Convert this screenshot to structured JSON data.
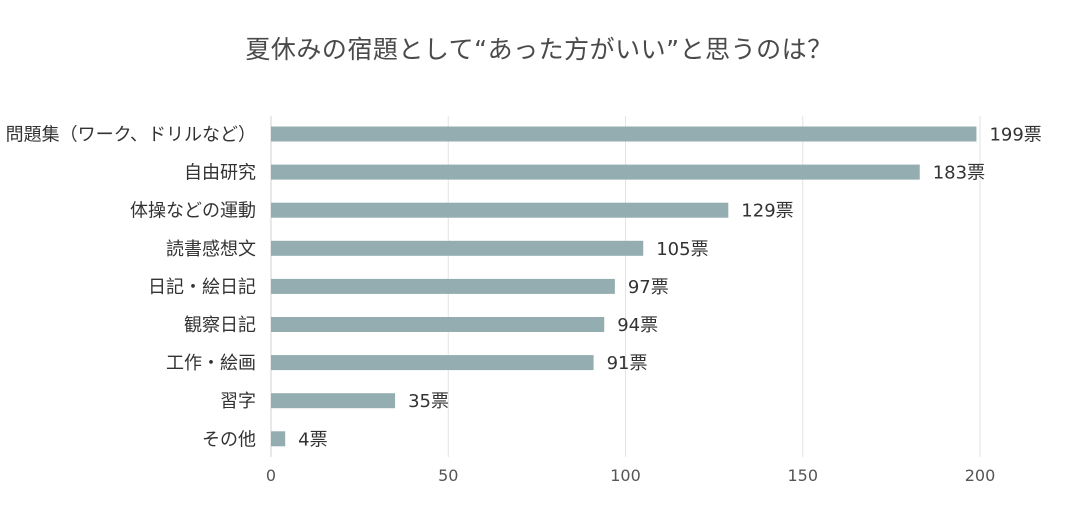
{
  "chart_data": {
    "type": "bar",
    "orientation": "horizontal",
    "title": "夏休みの宿題として“あった方がいい”と思うのは？",
    "categories": [
      "問題集（ワーク、ドリルなど）",
      "自由研究",
      "体操などの運動",
      "読書感想文",
      "日記・絵日記",
      "観察日記",
      "工作・絵画",
      "習字",
      "その他"
    ],
    "values": [
      199,
      183,
      129,
      105,
      97,
      94,
      91,
      35,
      4
    ],
    "value_labels": [
      "199票",
      "183票",
      "129票",
      "105票",
      "97票",
      "94票",
      "91票",
      "35票",
      "4票"
    ],
    "xlim": [
      0,
      200
    ],
    "xticks": [
      "0",
      "50",
      "100",
      "150",
      "200"
    ],
    "xtick_values": [
      0,
      50,
      100,
      150,
      200
    ],
    "grid": true,
    "bar_color": "#93adb1"
  }
}
